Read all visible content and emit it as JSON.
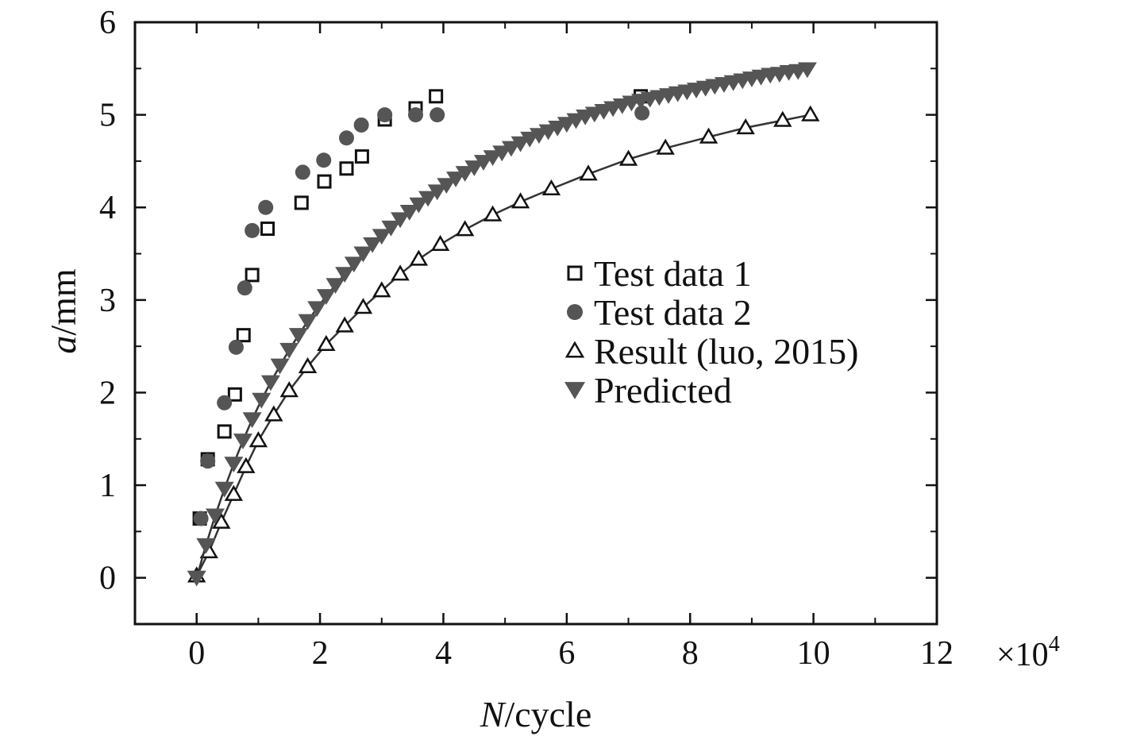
{
  "chart_data": {
    "type": "scatter",
    "title": "",
    "xlabel": {
      "italic": "N",
      "rest": "/cycle"
    },
    "ylabel": {
      "italic": "a",
      "rest": "/mm"
    },
    "x_multiplier": {
      "base": "×10",
      "exponent": "4"
    },
    "xlim": [
      -1,
      12
    ],
    "ylim": [
      -0.5,
      6
    ],
    "xticks": [
      0,
      2,
      4,
      6,
      8,
      10,
      12
    ],
    "yticks": [
      0,
      1,
      2,
      3,
      4,
      5,
      6
    ],
    "grid": false,
    "legend_position": "center-right",
    "series": [
      {
        "name": "Test data 1",
        "marker": "open-square",
        "color": "#111111",
        "line": false,
        "x": [
          0.05,
          0.18,
          0.45,
          0.62,
          0.76,
          0.9,
          1.15,
          1.7,
          2.07,
          2.43,
          2.68,
          3.05,
          3.55,
          3.88,
          7.2
        ],
        "y": [
          0.64,
          1.28,
          1.58,
          1.98,
          2.62,
          3.27,
          3.77,
          4.05,
          4.28,
          4.42,
          4.55,
          4.95,
          5.07,
          5.2,
          5.2
        ]
      },
      {
        "name": "Test data 2",
        "marker": "filled-circle",
        "color": "#555555",
        "line": false,
        "x": [
          0.07,
          0.18,
          0.45,
          0.64,
          0.78,
          0.9,
          1.12,
          1.72,
          2.06,
          2.43,
          2.67,
          3.05,
          3.55,
          3.9,
          7.22
        ],
        "y": [
          0.64,
          1.26,
          1.89,
          2.49,
          3.13,
          3.75,
          4.0,
          4.38,
          4.51,
          4.75,
          4.89,
          5.0,
          5.0,
          5.0,
          5.02
        ]
      },
      {
        "name": "Result (luo, 2015)",
        "marker": "open-triangle-up",
        "color": "#111111",
        "line": true,
        "x": [
          0,
          0.2,
          0.4,
          0.6,
          0.8,
          1.0,
          1.25,
          1.5,
          1.8,
          2.1,
          2.4,
          2.7,
          3.0,
          3.3,
          3.6,
          3.95,
          4.35,
          4.8,
          5.25,
          5.75,
          6.35,
          7.0,
          7.6,
          8.3,
          8.9,
          9.5,
          9.95
        ],
        "y": [
          0.02,
          0.28,
          0.6,
          0.9,
          1.2,
          1.48,
          1.76,
          2.02,
          2.28,
          2.52,
          2.72,
          2.92,
          3.1,
          3.28,
          3.44,
          3.6,
          3.76,
          3.92,
          4.06,
          4.2,
          4.36,
          4.52,
          4.64,
          4.76,
          4.86,
          4.94,
          5.0
        ]
      },
      {
        "name": "Predicted",
        "marker": "filled-triangle-down",
        "color": "#555555",
        "line": true,
        "x": [
          0,
          0.15,
          0.3,
          0.45,
          0.6,
          0.75,
          0.9,
          1.05,
          1.2,
          1.35,
          1.5,
          1.65,
          1.8,
          1.95,
          2.1,
          2.25,
          2.4,
          2.55,
          2.7,
          2.85,
          3.0,
          3.15,
          3.3,
          3.45,
          3.6,
          3.75,
          3.9,
          4.05,
          4.2,
          4.35,
          4.5,
          4.65,
          4.8,
          4.95,
          5.1,
          5.25,
          5.4,
          5.55,
          5.7,
          5.85,
          6.0,
          6.15,
          6.3,
          6.45,
          6.6,
          6.75,
          6.9,
          7.05,
          7.2,
          7.35,
          7.5,
          7.65,
          7.8,
          7.95,
          8.1,
          8.25,
          8.4,
          8.55,
          8.7,
          8.85,
          9.0,
          9.15,
          9.3,
          9.45,
          9.6,
          9.75,
          9.9
        ],
        "y": [
          0.0,
          0.35,
          0.67,
          0.96,
          1.23,
          1.48,
          1.71,
          1.92,
          2.11,
          2.29,
          2.46,
          2.62,
          2.77,
          2.91,
          3.04,
          3.16,
          3.28,
          3.39,
          3.5,
          3.6,
          3.69,
          3.78,
          3.87,
          3.95,
          4.03,
          4.1,
          4.17,
          4.24,
          4.31,
          4.37,
          4.43,
          4.49,
          4.54,
          4.59,
          4.64,
          4.69,
          4.74,
          4.78,
          4.82,
          4.86,
          4.9,
          4.94,
          4.98,
          5.01,
          5.04,
          5.07,
          5.1,
          5.13,
          5.15,
          5.17,
          5.19,
          5.21,
          5.23,
          5.25,
          5.27,
          5.29,
          5.31,
          5.33,
          5.35,
          5.37,
          5.39,
          5.41,
          5.43,
          5.44,
          5.46,
          5.47,
          5.49
        ]
      }
    ]
  }
}
